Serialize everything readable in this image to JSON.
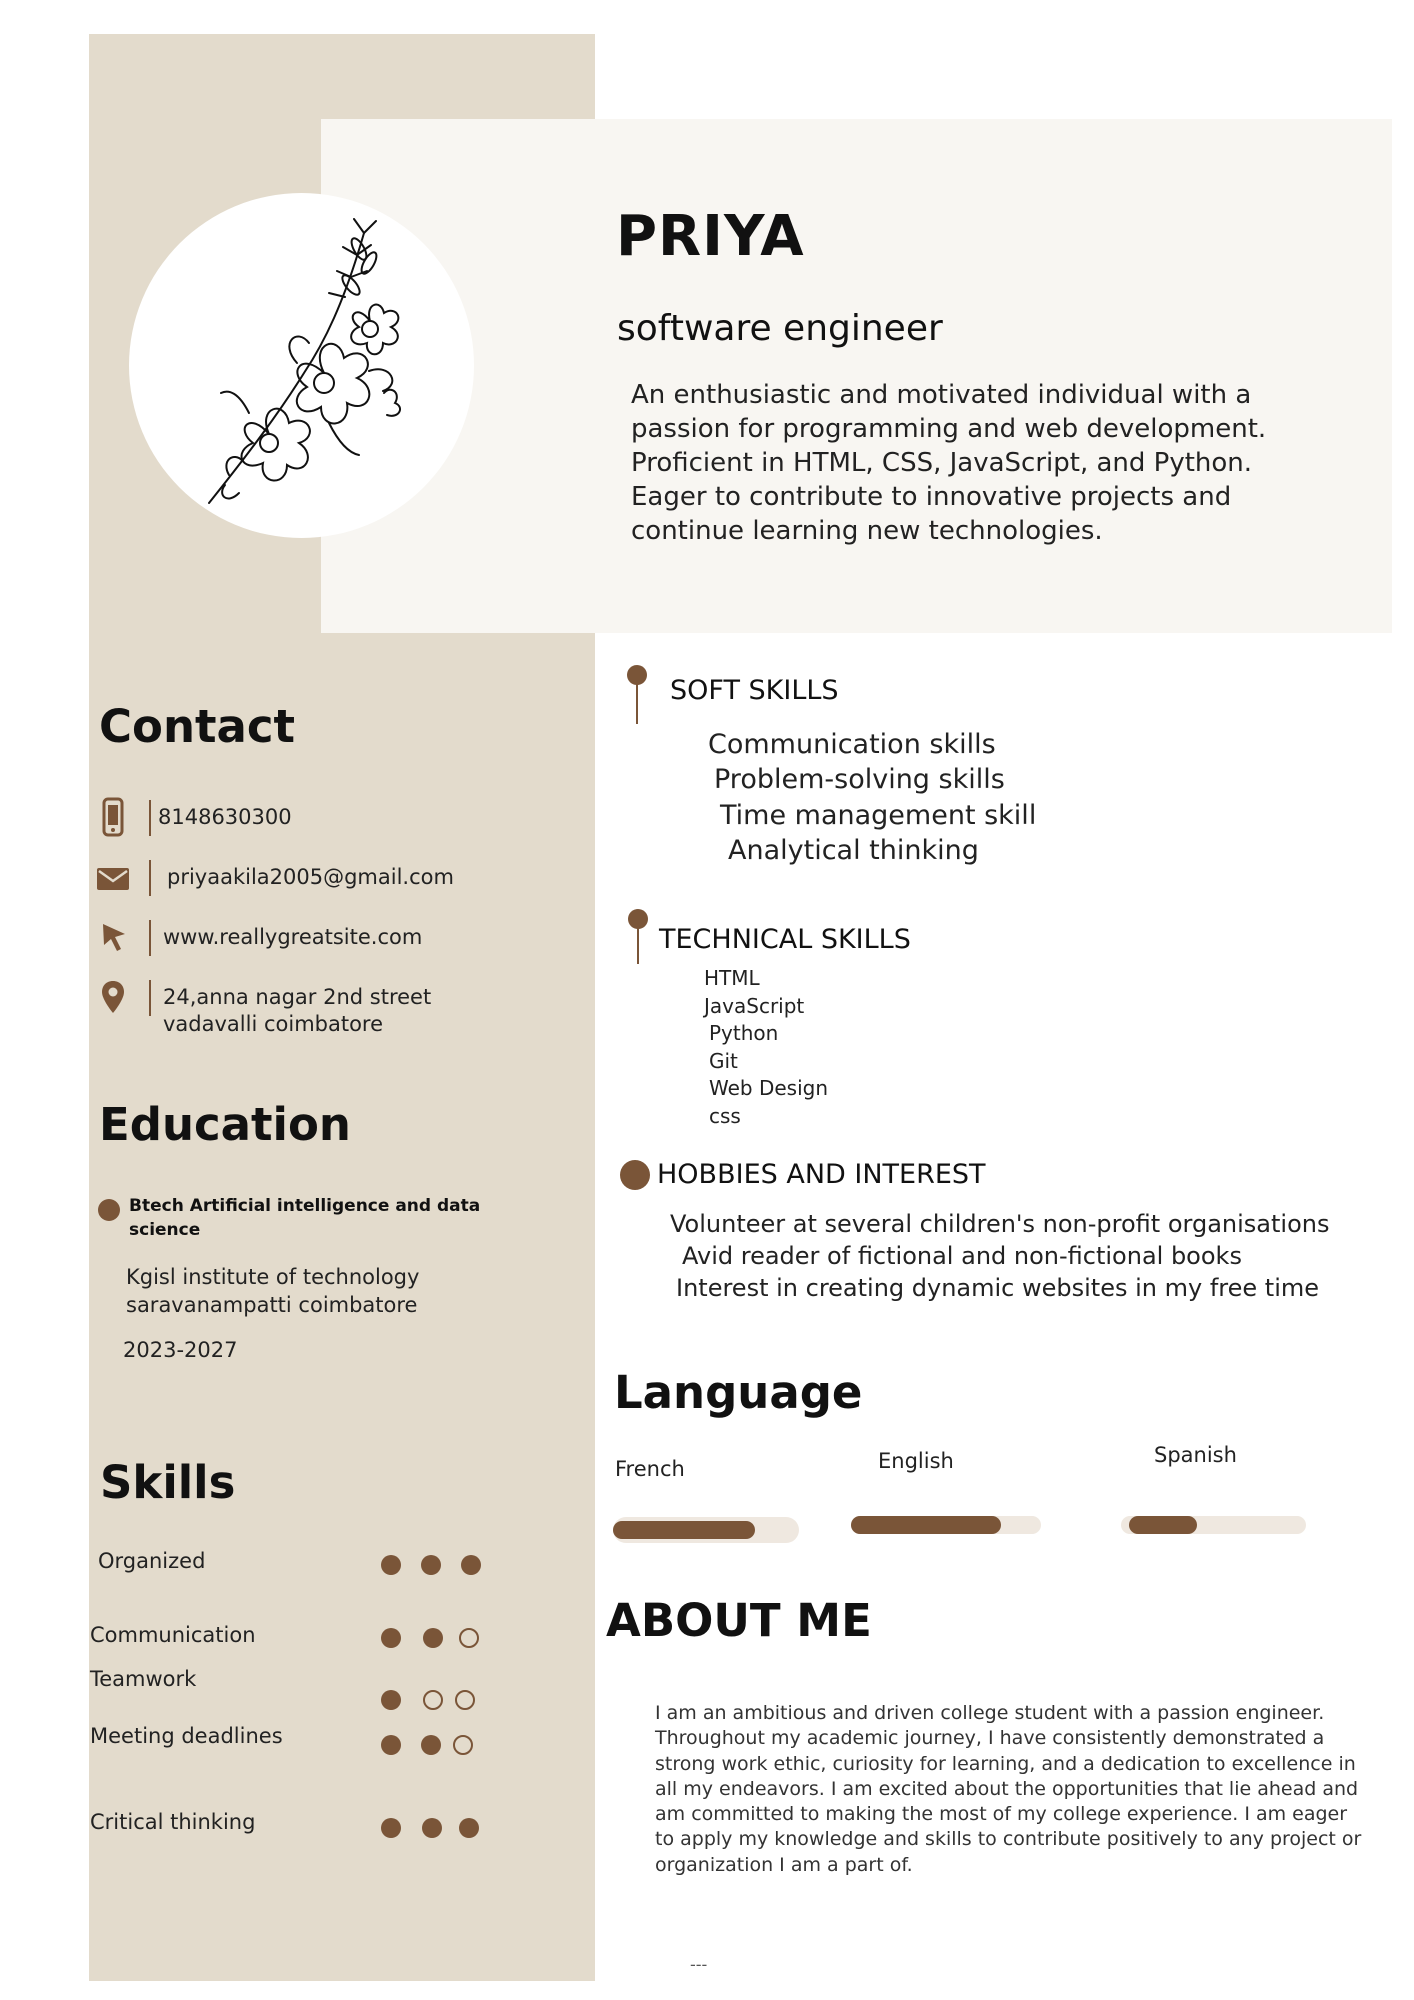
{
  "header": {
    "name": "PRIYA",
    "role": "software engineer",
    "summary": "An enthusiastic and motivated individual with a passion for programming and web development. Proficient in HTML, CSS, JavaScript, and Python. Eager to contribute to innovative projects and continue learning new technologies."
  },
  "colors": {
    "accent": "#7a5538",
    "sidebar": "#e3dbcc",
    "card": "#f8f6f2",
    "bar_track": "#efe8e0"
  },
  "contact": {
    "title": "Contact",
    "phone": "8148630300",
    "email": "priyaakila2005@gmail.com",
    "website": "www.reallygreatsite.com",
    "address_line1": "24,anna  nagar 2nd street",
    "address_line2": "vadavalli coimbatore",
    "icons": [
      "phone-icon",
      "mail-icon",
      "cursor-icon",
      "location-pin-icon"
    ]
  },
  "education": {
    "title": "Education",
    "degree": "Btech Artificial intelligence and data science",
    "institute_line1": "Kgisl institute of technology",
    "institute_line2": "saravanampatti coimbatore",
    "years": "2023-2027"
  },
  "skills": {
    "title": "Skills",
    "items": [
      {
        "label": "Organized",
        "rating": 3,
        "max": 3
      },
      {
        "label": "Communication",
        "rating": 2,
        "max": 3
      },
      {
        "label": "Teamwork",
        "rating": 1,
        "max": 3
      },
      {
        "label": "Meeting deadlines",
        "rating": 2,
        "max": 3
      },
      {
        "label": "Critical thinking",
        "rating": 3,
        "max": 3
      }
    ]
  },
  "soft_skills": {
    "title": "SOFT SKILLS",
    "items": [
      "Communication skills",
      "Problem-solving skills",
      "Time management skill",
      "Analytical thinking"
    ]
  },
  "technical_skills": {
    "title": "TECHNICAL SKILLS",
    "items": [
      "HTML",
      "JavaScript",
      "Python",
      "Git",
      "Web Design",
      "css"
    ]
  },
  "hobbies": {
    "title": "HOBBIES AND INTEREST",
    "items": [
      "Volunteer at several children's non-profit organisations",
      "Avid reader of fictional and non-fictional books",
      "Interest in creating dynamic websites in my free time"
    ]
  },
  "language": {
    "title": "Language",
    "items": [
      {
        "label": "French",
        "level": 0.83
      },
      {
        "label": "English",
        "level": 0.86
      },
      {
        "label": "Spanish",
        "level": 0.4
      }
    ]
  },
  "about": {
    "title": "ABOUT ME",
    "text": "I am an ambitious and driven college student with a passion engineer. Throughout my academic journey, I have consistently demonstrated a strong work ethic, curiosity for learning, and a dedication to excellence in all my endeavors. I am excited about the opportunities that lie ahead and am committed to making the most of my college experience. I am eager to apply my knowledge and skills to contribute positively to any project or organization I am a part of."
  },
  "footer_mark": "---"
}
